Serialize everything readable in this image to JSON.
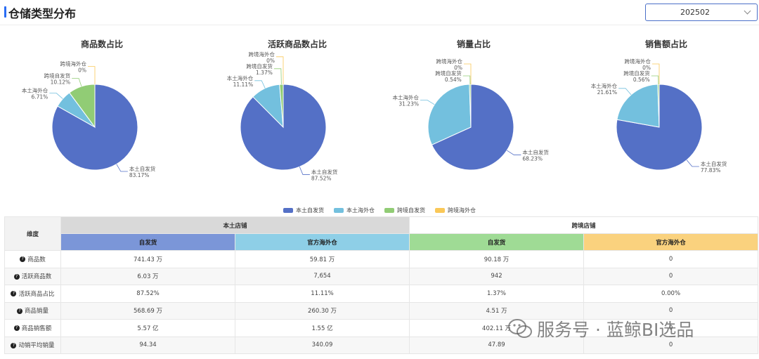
{
  "header": {
    "title": "仓储类型分布",
    "period_value": "202502"
  },
  "charts": [
    {
      "title": "商品数占比",
      "slices": [
        {
          "name": "本土自发货",
          "pct": 83.17,
          "label": "83.17%"
        },
        {
          "name": "本土海外仓",
          "pct": 6.71,
          "label": "6.71%"
        },
        {
          "name": "跨境自发货",
          "pct": 10.12,
          "label": "10.12%"
        },
        {
          "name": "跨境海外仓",
          "pct": 0,
          "label": "0%"
        }
      ]
    },
    {
      "title": "活跃商品数占比",
      "slices": [
        {
          "name": "本土自发货",
          "pct": 87.52,
          "label": "87.52%"
        },
        {
          "name": "本土海外仓",
          "pct": 11.11,
          "label": "11.11%"
        },
        {
          "name": "跨境自发货",
          "pct": 1.37,
          "label": "1.37%"
        },
        {
          "name": "跨境海外仓",
          "pct": 0,
          "label": "0%"
        }
      ]
    },
    {
      "title": "销量占比",
      "slices": [
        {
          "name": "本土自发货",
          "pct": 68.23,
          "label": "68.23%"
        },
        {
          "name": "本土海外仓",
          "pct": 31.23,
          "label": "31.23%"
        },
        {
          "name": "跨境自发货",
          "pct": 0.54,
          "label": "0.54%"
        },
        {
          "name": "跨境海外仓",
          "pct": 0,
          "label": "0%"
        }
      ]
    },
    {
      "title": "销售额占比",
      "slices": [
        {
          "name": "本土自发货",
          "pct": 77.83,
          "label": "77.83%"
        },
        {
          "name": "本土海外仓",
          "pct": 21.61,
          "label": "21.61%"
        },
        {
          "name": "跨境自发货",
          "pct": 0.56,
          "label": "0.56%"
        },
        {
          "name": "跨境海外仓",
          "pct": 0,
          "label": "0%"
        }
      ]
    }
  ],
  "legend": [
    {
      "name": "本土自发货",
      "color": "#5470c6"
    },
    {
      "name": "本土海外仓",
      "color": "#73c0de"
    },
    {
      "name": "跨境自发货",
      "color": "#91cc75"
    },
    {
      "name": "跨境海外仓",
      "color": "#fac858"
    }
  ],
  "table": {
    "dim_header": "维度",
    "group_local": "本土店铺",
    "group_cross": "跨境店铺",
    "sub_self_1": "自发货",
    "sub_overseas_1": "官方海外仓",
    "sub_self_2": "自发货",
    "sub_overseas_2": "官方海外仓",
    "rows": [
      {
        "metric": "商品数",
        "v": [
          "741.43 万",
          "59.81 万",
          "90.18 万",
          "0"
        ]
      },
      {
        "metric": "活跃商品数",
        "v": [
          "6.03 万",
          "7,654",
          "942",
          "0"
        ]
      },
      {
        "metric": "活跃商品占比",
        "v": [
          "87.52%",
          "11.11%",
          "1.37%",
          "0.00%"
        ]
      },
      {
        "metric": "商品销量",
        "v": [
          "568.69 万",
          "260.30 万",
          "4.51 万",
          "0"
        ]
      },
      {
        "metric": "商品销售额",
        "v": [
          "5.57 亿",
          "1.55 亿",
          "402.11 万",
          "0"
        ]
      },
      {
        "metric": "动销平均销量",
        "v": [
          "94.34",
          "340.09",
          "47.89",
          "0"
        ]
      }
    ]
  },
  "watermark": "服务号 · 蓝鲸BI选品",
  "chart_data": [
    {
      "type": "pie",
      "title": "商品数占比",
      "categories": [
        "本土自发货",
        "本土海外仓",
        "跨境自发货",
        "跨境海外仓"
      ],
      "values": [
        83.17,
        6.71,
        10.12,
        0
      ]
    },
    {
      "type": "pie",
      "title": "活跃商品数占比",
      "categories": [
        "本土自发货",
        "本土海外仓",
        "跨境自发货",
        "跨境海外仓"
      ],
      "values": [
        87.52,
        11.11,
        1.37,
        0
      ]
    },
    {
      "type": "pie",
      "title": "销量占比",
      "categories": [
        "本土自发货",
        "本土海外仓",
        "跨境自发货",
        "跨境海外仓"
      ],
      "values": [
        68.23,
        31.23,
        0.54,
        0
      ]
    },
    {
      "type": "pie",
      "title": "销售额占比",
      "categories": [
        "本土自发货",
        "本土海外仓",
        "跨境自发货",
        "跨境海外仓"
      ],
      "values": [
        77.83,
        21.61,
        0.56,
        0
      ]
    }
  ]
}
